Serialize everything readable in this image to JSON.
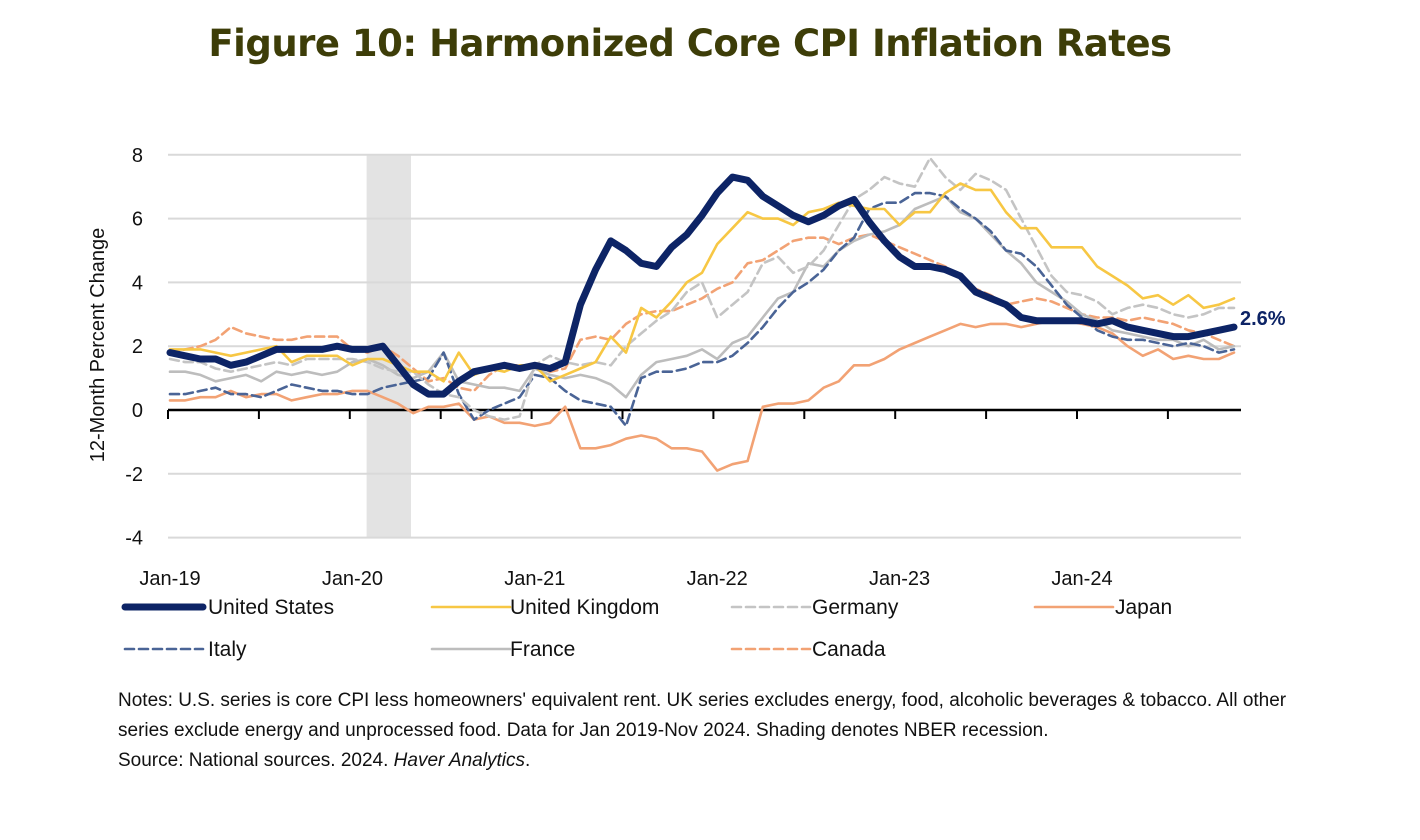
{
  "title": "Figure 10: Harmonized Core CPI Inflation Rates",
  "notes": "Notes: U.S. series is core CPI less homeowners' equivalent rent. UK series excludes energy, food, alcoholic beverages & tobacco. All other series exclude energy and unprocessed food. Data for Jan 2019-Nov 2024. Shading denotes NBER recession.",
  "source_prefix": "Source: National sources. 2024. ",
  "source_italic": "Haver Analytics",
  "source_suffix": ".",
  "chart_data": {
    "type": "line",
    "title": "Figure 10: Harmonized Core CPI Inflation Rates",
    "xlabel": "",
    "ylabel": "12-Month Percent Change",
    "ylim": [
      -4,
      8
    ],
    "yticks": [
      -4,
      -2,
      0,
      2,
      4,
      6,
      8
    ],
    "x_start": "Jan-19",
    "x_end": "Nov-24",
    "x_tick_labels": [
      "Jan-19",
      "Jan-20",
      "Jan-21",
      "Jan-22",
      "Jan-23",
      "Jan-24"
    ],
    "grid": true,
    "legend_position": "bottom",
    "shading": {
      "label": "NBER recession",
      "from": "Feb-20",
      "to": "Apr-20",
      "color": "#e3e3e3"
    },
    "annotation": {
      "text": "2.6%",
      "series": "United States",
      "at": "Nov-24"
    },
    "series": [
      {
        "name": "United States",
        "color": "#0d2466",
        "style": "solid",
        "width": "thick",
        "values": [
          1.8,
          1.7,
          1.6,
          1.6,
          1.4,
          1.5,
          1.7,
          1.9,
          1.9,
          1.9,
          1.9,
          2.0,
          1.9,
          1.9,
          2.0,
          1.4,
          0.8,
          0.5,
          0.5,
          0.9,
          1.2,
          1.3,
          1.4,
          1.3,
          1.4,
          1.3,
          1.5,
          3.3,
          4.4,
          5.3,
          5.0,
          4.6,
          4.5,
          5.1,
          5.5,
          6.1,
          6.8,
          7.3,
          7.2,
          6.7,
          6.4,
          6.1,
          5.9,
          6.1,
          6.4,
          6.6,
          5.9,
          5.3,
          4.8,
          4.5,
          4.5,
          4.4,
          4.2,
          3.7,
          3.5,
          3.3,
          2.9,
          2.8,
          2.8,
          2.8,
          2.8,
          2.7,
          2.8,
          2.6,
          2.5,
          2.4,
          2.3,
          2.3,
          2.4,
          2.5,
          2.6
        ]
      },
      {
        "name": "United Kingdom",
        "color": "#f7c744",
        "style": "solid",
        "width": "normal",
        "values": [
          1.9,
          1.9,
          1.9,
          1.8,
          1.7,
          1.8,
          1.9,
          2.0,
          1.5,
          1.7,
          1.7,
          1.7,
          1.4,
          1.6,
          1.6,
          1.4,
          1.2,
          1.2,
          0.9,
          1.8,
          1.1,
          1.3,
          1.2,
          1.4,
          1.4,
          0.9,
          1.1,
          1.3,
          1.5,
          2.3,
          1.8,
          3.2,
          2.9,
          3.4,
          4.0,
          4.3,
          5.2,
          5.7,
          6.2,
          6.0,
          6.0,
          5.8,
          6.2,
          6.3,
          6.5,
          6.4,
          6.3,
          6.3,
          5.8,
          6.2,
          6.2,
          6.8,
          7.1,
          6.9,
          6.9,
          6.2,
          5.7,
          5.7,
          5.1,
          5.1,
          5.1,
          4.5,
          4.2,
          3.9,
          3.5,
          3.6,
          3.3,
          3.6,
          3.2,
          3.3,
          3.5
        ]
      },
      {
        "name": "Germany",
        "color": "#c4c4c4",
        "style": "dashed",
        "width": "normal",
        "values": [
          1.6,
          1.5,
          1.5,
          1.3,
          1.2,
          1.3,
          1.4,
          1.5,
          1.4,
          1.6,
          1.6,
          1.6,
          1.6,
          1.5,
          1.3,
          1.2,
          1.2,
          0.8,
          0.5,
          0.4,
          0.0,
          -0.2,
          -0.3,
          -0.2,
          1.4,
          1.7,
          1.5,
          1.4,
          1.5,
          1.4,
          2.0,
          2.4,
          2.8,
          3.1,
          3.7,
          4.0,
          2.9,
          3.3,
          3.7,
          4.6,
          4.8,
          4.3,
          4.5,
          5.0,
          5.8,
          6.6,
          6.9,
          7.3,
          7.1,
          7.0,
          7.9,
          7.3,
          6.9,
          7.4,
          7.2,
          6.9,
          6.0,
          5.1,
          4.2,
          3.7,
          3.6,
          3.4,
          3.0,
          3.2,
          3.3,
          3.2,
          3.0,
          2.9,
          3.0,
          3.2,
          3.2
        ]
      },
      {
        "name": "Japan",
        "color": "#f2a274",
        "style": "solid",
        "width": "normal",
        "values": [
          0.3,
          0.3,
          0.4,
          0.4,
          0.6,
          0.4,
          0.5,
          0.5,
          0.3,
          0.4,
          0.5,
          0.5,
          0.6,
          0.6,
          0.4,
          0.2,
          -0.1,
          0.1,
          0.1,
          0.2,
          -0.3,
          -0.2,
          -0.4,
          -0.4,
          -0.5,
          -0.4,
          0.1,
          -1.2,
          -1.2,
          -1.1,
          -0.9,
          -0.8,
          -0.9,
          -1.2,
          -1.2,
          -1.3,
          -1.9,
          -1.7,
          -1.6,
          0.1,
          0.2,
          0.2,
          0.3,
          0.7,
          0.9,
          1.4,
          1.4,
          1.6,
          1.9,
          2.1,
          2.3,
          2.5,
          2.7,
          2.6,
          2.7,
          2.7,
          2.6,
          2.7,
          2.8,
          2.8,
          2.7,
          2.6,
          2.4,
          2.0,
          1.7,
          1.9,
          1.6,
          1.7,
          1.6,
          1.6,
          1.8
        ]
      },
      {
        "name": "Italy",
        "color": "#4a6496",
        "style": "dashed",
        "width": "normal",
        "values": [
          0.5,
          0.5,
          0.6,
          0.7,
          0.5,
          0.5,
          0.4,
          0.6,
          0.8,
          0.7,
          0.6,
          0.6,
          0.5,
          0.5,
          0.7,
          0.8,
          0.9,
          1.0,
          1.8,
          0.5,
          -0.3,
          0.0,
          0.2,
          0.4,
          1.1,
          1.0,
          0.6,
          0.3,
          0.2,
          0.1,
          -0.5,
          1.0,
          1.2,
          1.2,
          1.3,
          1.5,
          1.5,
          1.7,
          2.1,
          2.6,
          3.2,
          3.7,
          4.0,
          4.4,
          5.0,
          5.4,
          6.3,
          6.5,
          6.5,
          6.8,
          6.8,
          6.7,
          6.3,
          6.0,
          5.6,
          5.0,
          4.9,
          4.5,
          3.9,
          3.3,
          2.9,
          2.5,
          2.3,
          2.2,
          2.2,
          2.1,
          2.0,
          2.1,
          2.0,
          1.8,
          1.9
        ]
      },
      {
        "name": "France",
        "color": "#bdbdbd",
        "style": "solid",
        "width": "normal",
        "values": [
          1.2,
          1.2,
          1.1,
          0.9,
          1.0,
          1.1,
          0.9,
          1.2,
          1.1,
          1.2,
          1.1,
          1.2,
          1.5,
          1.6,
          1.4,
          1.1,
          1.0,
          1.2,
          1.8,
          0.9,
          0.8,
          0.7,
          0.7,
          0.6,
          1.3,
          1.1,
          1.0,
          1.1,
          1.0,
          0.8,
          0.4,
          1.1,
          1.5,
          1.6,
          1.7,
          1.9,
          1.6,
          2.1,
          2.3,
          2.9,
          3.5,
          3.7,
          4.6,
          4.5,
          5.0,
          5.3,
          5.5,
          5.6,
          5.8,
          6.3,
          6.5,
          6.7,
          6.2,
          6.0,
          5.5,
          5.0,
          4.6,
          4.0,
          3.7,
          3.4,
          3.0,
          2.8,
          2.5,
          2.4,
          2.3,
          2.2,
          2.2,
          2.0,
          2.2,
          1.9,
          2.0
        ]
      },
      {
        "name": "Canada",
        "color": "#f2a274",
        "style": "dashed",
        "width": "normal",
        "values": [
          1.8,
          1.9,
          2.0,
          2.2,
          2.6,
          2.4,
          2.3,
          2.2,
          2.2,
          2.3,
          2.3,
          2.3,
          1.9,
          1.8,
          2.0,
          1.7,
          1.3,
          0.9,
          1.0,
          0.7,
          0.6,
          1.1,
          1.4,
          1.4,
          1.4,
          1.2,
          1.3,
          2.2,
          2.3,
          2.2,
          2.7,
          3.0,
          3.1,
          3.1,
          3.3,
          3.5,
          3.8,
          4.0,
          4.6,
          4.7,
          5.0,
          5.3,
          5.4,
          5.4,
          5.2,
          5.4,
          5.5,
          5.3,
          5.1,
          4.9,
          4.7,
          4.5,
          4.2,
          3.8,
          3.6,
          3.3,
          3.4,
          3.5,
          3.4,
          3.2,
          3.0,
          2.9,
          2.9,
          2.8,
          2.9,
          2.8,
          2.7,
          2.5,
          2.4,
          2.2,
          2.0
        ]
      }
    ]
  }
}
